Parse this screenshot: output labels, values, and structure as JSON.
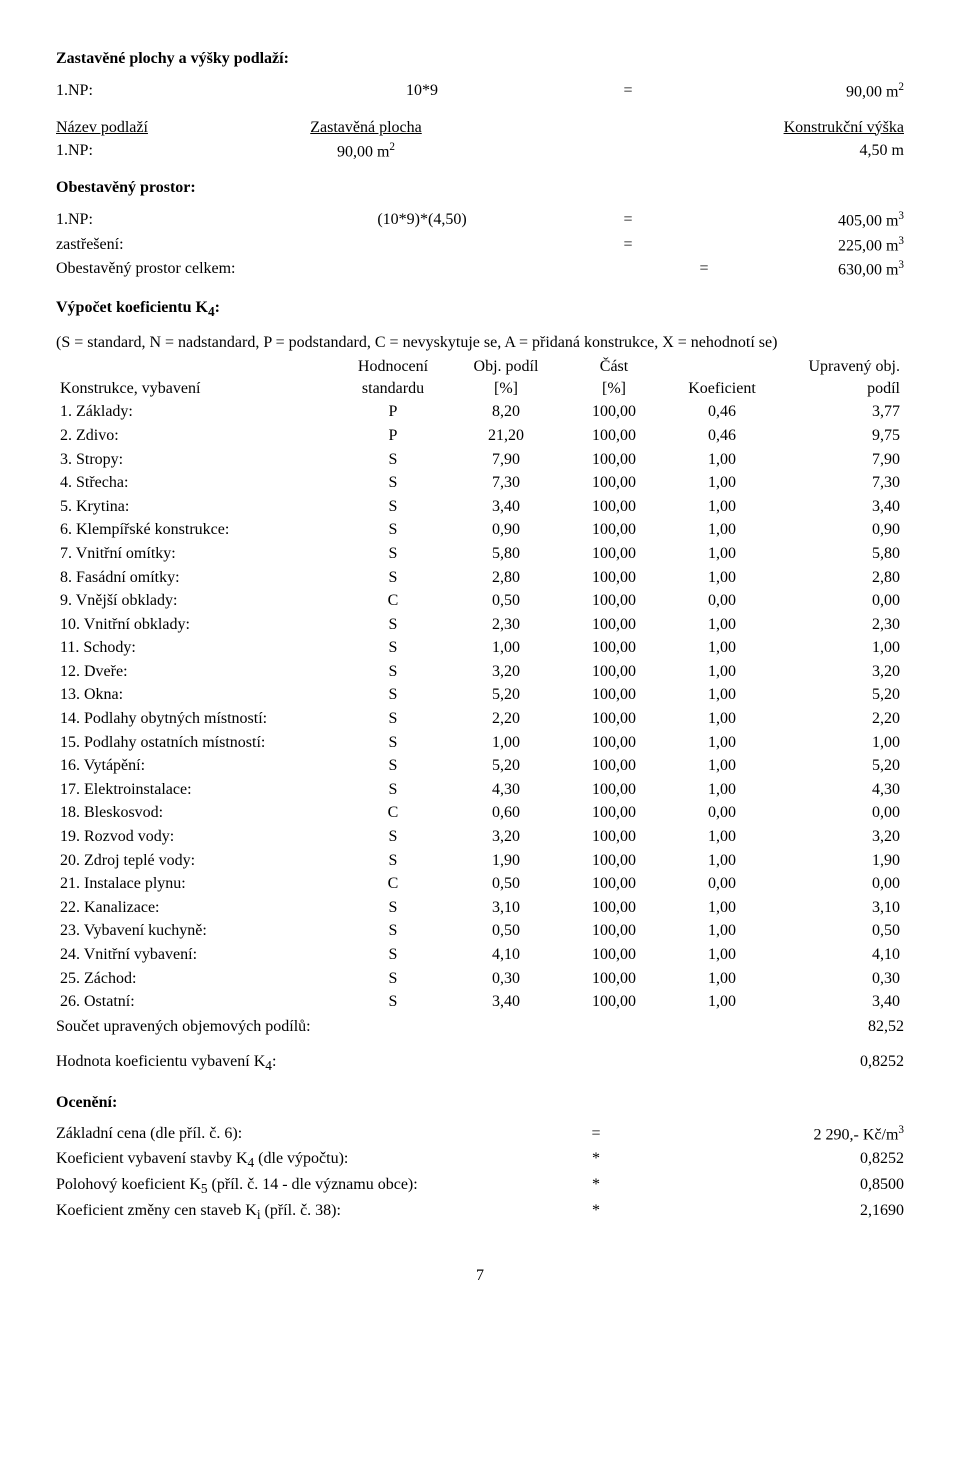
{
  "section1": {
    "title": "Zastavěné plochy a výšky podlaží:",
    "calc": {
      "label": "1.NP:",
      "expr": "10*9",
      "eq": "=",
      "result_html": "90,00 m<sup>2</sup>"
    },
    "hdr": {
      "c1": "Název podlaží",
      "c2": "Zastavěná plocha",
      "c3": "Konstrukční výška"
    },
    "val": {
      "c1": "1.NP:",
      "c2_html": "90,00 m<sup>2</sup>",
      "c3": "4,50 m"
    }
  },
  "section2": {
    "title": "Obestavěný prostor:",
    "calc": {
      "label": "1.NP:",
      "expr": "(10*9)*(4,50)",
      "eq": "=",
      "result_html": "405,00 m<sup>3</sup>"
    },
    "row2": {
      "label": "zastřešení:",
      "eq": "=",
      "result_html": "225,00 m<sup>3</sup>"
    },
    "row3": {
      "label": "Obestavěný prostor celkem:",
      "eq": "=",
      "result_html": "630,00 m<sup>3</sup>"
    }
  },
  "section3": {
    "title_html": "Výpočet koeficientu K<sub>4</sub>:",
    "legend": "(S = standard, N = nadstandard, P = podstandard, C = nevyskytuje se, A = přidaná konstrukce, X = nehodnotí se)",
    "header": {
      "c1a": "Konstrukce, vybavení",
      "c2a": "Hodnocení",
      "c2b": "standardu",
      "c3a": "Obj. podíl",
      "c3b": "[%]",
      "c4a": "Část",
      "c4b": "[%]",
      "c5a": "Koeficient",
      "c6a": "Upravený obj.",
      "c6b": "podíl"
    },
    "rows": [
      {
        "n": "1. Základy:",
        "s": "P",
        "o": "8,20",
        "c": "100,00",
        "k": "0,46",
        "u": "3,77"
      },
      {
        "n": "2. Zdivo:",
        "s": "P",
        "o": "21,20",
        "c": "100,00",
        "k": "0,46",
        "u": "9,75"
      },
      {
        "n": "3. Stropy:",
        "s": "S",
        "o": "7,90",
        "c": "100,00",
        "k": "1,00",
        "u": "7,90"
      },
      {
        "n": "4. Střecha:",
        "s": "S",
        "o": "7,30",
        "c": "100,00",
        "k": "1,00",
        "u": "7,30"
      },
      {
        "n": "5. Krytina:",
        "s": "S",
        "o": "3,40",
        "c": "100,00",
        "k": "1,00",
        "u": "3,40"
      },
      {
        "n": "6. Klempířské konstrukce:",
        "s": "S",
        "o": "0,90",
        "c": "100,00",
        "k": "1,00",
        "u": "0,90"
      },
      {
        "n": "7. Vnitřní omítky:",
        "s": "S",
        "o": "5,80",
        "c": "100,00",
        "k": "1,00",
        "u": "5,80"
      },
      {
        "n": "8. Fasádní omítky:",
        "s": "S",
        "o": "2,80",
        "c": "100,00",
        "k": "1,00",
        "u": "2,80"
      },
      {
        "n": "9. Vnější obklady:",
        "s": "C",
        "o": "0,50",
        "c": "100,00",
        "k": "0,00",
        "u": "0,00"
      },
      {
        "n": "10. Vnitřní obklady:",
        "s": "S",
        "o": "2,30",
        "c": "100,00",
        "k": "1,00",
        "u": "2,30"
      },
      {
        "n": "11. Schody:",
        "s": "S",
        "o": "1,00",
        "c": "100,00",
        "k": "1,00",
        "u": "1,00"
      },
      {
        "n": "12. Dveře:",
        "s": "S",
        "o": "3,20",
        "c": "100,00",
        "k": "1,00",
        "u": "3,20"
      },
      {
        "n": "13. Okna:",
        "s": "S",
        "o": "5,20",
        "c": "100,00",
        "k": "1,00",
        "u": "5,20"
      },
      {
        "n": "14. Podlahy obytných místností:",
        "s": "S",
        "o": "2,20",
        "c": "100,00",
        "k": "1,00",
        "u": "2,20"
      },
      {
        "n": "15. Podlahy ostatních místností:",
        "s": "S",
        "o": "1,00",
        "c": "100,00",
        "k": "1,00",
        "u": "1,00"
      },
      {
        "n": "16. Vytápění:",
        "s": "S",
        "o": "5,20",
        "c": "100,00",
        "k": "1,00",
        "u": "5,20"
      },
      {
        "n": "17. Elektroinstalace:",
        "s": "S",
        "o": "4,30",
        "c": "100,00",
        "k": "1,00",
        "u": "4,30"
      },
      {
        "n": "18. Bleskosvod:",
        "s": "C",
        "o": "0,60",
        "c": "100,00",
        "k": "0,00",
        "u": "0,00"
      },
      {
        "n": "19. Rozvod vody:",
        "s": "S",
        "o": "3,20",
        "c": "100,00",
        "k": "1,00",
        "u": "3,20"
      },
      {
        "n": "20. Zdroj teplé vody:",
        "s": "S",
        "o": "1,90",
        "c": "100,00",
        "k": "1,00",
        "u": "1,90"
      },
      {
        "n": "21. Instalace plynu:",
        "s": "C",
        "o": "0,50",
        "c": "100,00",
        "k": "0,00",
        "u": "0,00"
      },
      {
        "n": "22. Kanalizace:",
        "s": "S",
        "o": "3,10",
        "c": "100,00",
        "k": "1,00",
        "u": "3,10"
      },
      {
        "n": "23. Vybavení kuchyně:",
        "s": "S",
        "o": "0,50",
        "c": "100,00",
        "k": "1,00",
        "u": "0,50"
      },
      {
        "n": "24. Vnitřní vybavení:",
        "s": "S",
        "o": "4,10",
        "c": "100,00",
        "k": "1,00",
        "u": "4,10"
      },
      {
        "n": "25. Záchod:",
        "s": "S",
        "o": "0,30",
        "c": "100,00",
        "k": "1,00",
        "u": "0,30"
      },
      {
        "n": "26. Ostatní:",
        "s": "S",
        "o": "3,40",
        "c": "100,00",
        "k": "1,00",
        "u": "3,40"
      }
    ],
    "sum1": {
      "l": "Součet upravených objemových podílů:",
      "r": "82,52"
    },
    "sum2": {
      "l_html": "Hodnota koeficientu vybavení K<sub>4</sub>:",
      "r": "0,8252"
    }
  },
  "section4": {
    "title": "Ocenění:",
    "rows": [
      {
        "l": "Základní cena (dle příl. č. 6):",
        "m": "=",
        "r_html": "2 290,- Kč/m<sup>3</sup>"
      },
      {
        "l_html": "Koeficient vybavení stavby K<sub>4</sub> (dle výpočtu):",
        "m": "*",
        "r": "0,8252"
      },
      {
        "l_html": "Polohový koeficient K<sub>5</sub> (příl. č. 14 - dle významu obce):",
        "m": "*",
        "r": "0,8500"
      },
      {
        "l_html": "Koeficient změny cen staveb K<sub>i</sub> (příl. č. 38):",
        "m": "*",
        "r": "2,1690"
      }
    ]
  },
  "page_number": "7"
}
